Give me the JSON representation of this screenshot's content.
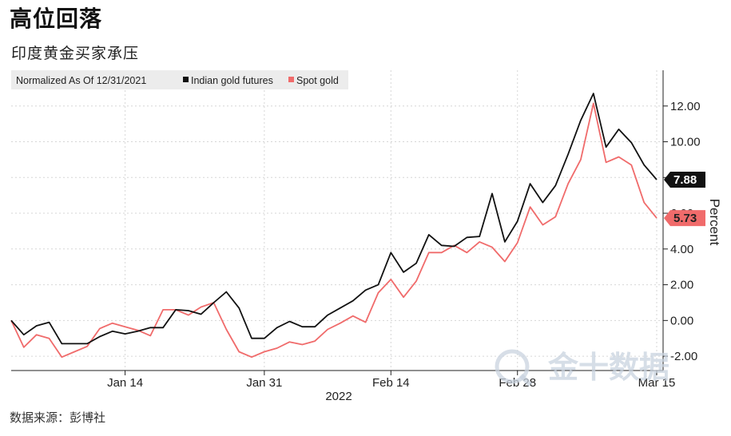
{
  "header": {
    "title": "高位回落",
    "subtitle": "印度黄金买家承压"
  },
  "footer": {
    "source": "数据来源：彭博社"
  },
  "watermark": {
    "text": "金十数据",
    "icon": "jin10-logo-icon"
  },
  "chart_data": {
    "type": "line",
    "legend": {
      "prefix": "Normalized As Of 12/31/2021",
      "placement": "top-left"
    },
    "ylabel": "Percent",
    "ylim": [
      -2.8,
      14
    ],
    "yticks": [
      -2,
      0,
      2,
      4,
      6,
      8,
      10,
      12
    ],
    "ytick_labels": [
      "-2.00",
      "0.00",
      "2.00",
      "4.00",
      "6.00",
      "8.00",
      "10.00",
      "12.00"
    ],
    "xticks": [
      {
        "label": "Jan 14",
        "index": 9
      },
      {
        "label": "Jan 31",
        "index": 20
      },
      {
        "label": "Feb 14",
        "index": 30
      },
      {
        "label": "Feb 28",
        "index": 40
      },
      {
        "label": "Mar 15",
        "index": 51
      }
    ],
    "xlabel": "2022",
    "grid": true,
    "series": [
      {
        "name": "Indian gold futures",
        "color": "#111111",
        "last_label": "7.88",
        "values": [
          0.0,
          -0.8,
          -0.3,
          -0.1,
          -1.3,
          -1.3,
          -1.3,
          -0.9,
          -0.6,
          -0.75,
          -0.6,
          -0.4,
          -0.4,
          0.6,
          0.55,
          0.35,
          1.0,
          1.6,
          0.7,
          -1.0,
          -1.0,
          -0.4,
          -0.05,
          -0.35,
          -0.35,
          0.3,
          0.7,
          1.1,
          1.7,
          2.0,
          3.8,
          2.7,
          3.2,
          4.8,
          4.2,
          4.15,
          4.65,
          4.7,
          7.1,
          4.4,
          5.55,
          7.65,
          6.6,
          7.55,
          9.3,
          11.2,
          12.7,
          9.7,
          10.7,
          9.95,
          8.7,
          7.88
        ]
      },
      {
        "name": "Spot gold",
        "color": "#f06b6b",
        "last_label": "5.73",
        "values": [
          0.0,
          -1.5,
          -0.8,
          -1.0,
          -2.05,
          -1.75,
          -1.45,
          -0.45,
          -0.15,
          -0.35,
          -0.55,
          -0.85,
          0.6,
          0.6,
          0.3,
          0.75,
          1.0,
          -0.5,
          -1.75,
          -2.05,
          -1.75,
          -1.55,
          -1.2,
          -1.35,
          -1.15,
          -0.5,
          -0.15,
          0.25,
          -0.1,
          1.55,
          2.3,
          1.3,
          2.2,
          3.8,
          3.8,
          4.2,
          3.8,
          4.4,
          4.1,
          3.3,
          4.35,
          6.35,
          5.35,
          5.8,
          7.65,
          9.0,
          12.15,
          8.85,
          9.15,
          8.7,
          6.6,
          5.73
        ]
      }
    ]
  }
}
